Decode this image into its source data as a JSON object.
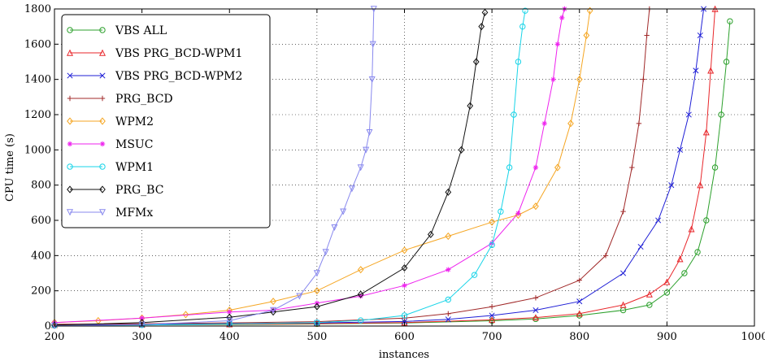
{
  "chart_data": {
    "type": "line",
    "xlabel": "instances",
    "ylabel": "CPU time (s)",
    "xlim": [
      200,
      1000
    ],
    "ylim": [
      0,
      1800
    ],
    "xticks": [
      200,
      300,
      400,
      500,
      600,
      700,
      800,
      900,
      1000
    ],
    "yticks": [
      0,
      200,
      400,
      600,
      800,
      1000,
      1200,
      1400,
      1600,
      1800
    ],
    "grid": "dotted",
    "legend_position": "top-left",
    "series": [
      {
        "name": "VBS ALL",
        "color": "#2ca02c",
        "marker": "circle",
        "x": [
          200,
          300,
          400,
          500,
          600,
          700,
          750,
          800,
          850,
          880,
          900,
          920,
          935,
          945,
          955,
          962,
          968,
          972
        ],
        "y": [
          5,
          7,
          9,
          12,
          17,
          30,
          40,
          60,
          90,
          120,
          190,
          300,
          420,
          600,
          900,
          1200,
          1500,
          1730
        ]
      },
      {
        "name": "VBS PRG_BCD-WPM1",
        "color": "#e8262a",
        "marker": "triangle-up",
        "x": [
          200,
          300,
          400,
          500,
          600,
          700,
          750,
          800,
          850,
          880,
          900,
          915,
          928,
          938,
          945,
          950,
          955
        ],
        "y": [
          6,
          8,
          10,
          14,
          20,
          35,
          48,
          70,
          120,
          180,
          250,
          380,
          550,
          800,
          1100,
          1450,
          1800
        ]
      },
      {
        "name": "VBS PRG_BCD-WPM2",
        "color": "#1f1fd6",
        "marker": "x",
        "x": [
          200,
          300,
          400,
          500,
          600,
          650,
          700,
          750,
          800,
          850,
          870,
          890,
          905,
          915,
          925,
          933,
          938,
          942
        ],
        "y": [
          8,
          10,
          14,
          18,
          26,
          38,
          60,
          90,
          140,
          300,
          450,
          600,
          800,
          1000,
          1200,
          1450,
          1650,
          1800
        ]
      },
      {
        "name": "PRG_BCD",
        "color": "#a02828",
        "marker": "plus",
        "x": [
          200,
          300,
          400,
          500,
          600,
          650,
          700,
          750,
          800,
          830,
          850,
          860,
          868,
          873,
          877,
          880
        ],
        "y": [
          10,
          13,
          18,
          25,
          45,
          70,
          110,
          160,
          260,
          400,
          650,
          900,
          1150,
          1400,
          1650,
          1800
        ]
      },
      {
        "name": "WPM2",
        "color": "#f5a623",
        "marker": "diamond",
        "x": [
          200,
          250,
          300,
          350,
          400,
          450,
          500,
          550,
          600,
          650,
          700,
          730,
          750,
          775,
          790,
          800,
          808,
          812
        ],
        "y": [
          20,
          30,
          45,
          65,
          90,
          140,
          200,
          320,
          430,
          510,
          590,
          630,
          680,
          900,
          1150,
          1400,
          1650,
          1790
        ]
      },
      {
        "name": "MSUC",
        "color": "#ee22ee",
        "marker": "star",
        "x": [
          200,
          300,
          400,
          450,
          500,
          550,
          600,
          650,
          700,
          730,
          750,
          760,
          770,
          775,
          780,
          783
        ],
        "y": [
          20,
          45,
          80,
          90,
          130,
          170,
          230,
          320,
          470,
          640,
          900,
          1150,
          1400,
          1600,
          1750,
          1800
        ]
      },
      {
        "name": "WPM1",
        "color": "#17d4e8",
        "marker": "circle",
        "x": [
          200,
          300,
          400,
          500,
          550,
          600,
          650,
          680,
          700,
          710,
          720,
          725,
          730,
          735,
          738
        ],
        "y": [
          3,
          6,
          12,
          20,
          32,
          60,
          150,
          290,
          460,
          650,
          900,
          1200,
          1500,
          1700,
          1790
        ]
      },
      {
        "name": "PRG_BC",
        "color": "#111111",
        "marker": "diamond",
        "x": [
          200,
          300,
          400,
          450,
          500,
          550,
          600,
          630,
          650,
          665,
          675,
          682,
          688,
          692
        ],
        "y": [
          5,
          20,
          50,
          80,
          110,
          180,
          330,
          520,
          760,
          1000,
          1250,
          1500,
          1700,
          1780
        ]
      },
      {
        "name": "MFMx",
        "color": "#8888ee",
        "marker": "triangle-down",
        "x": [
          200,
          300,
          400,
          450,
          480,
          500,
          510,
          520,
          530,
          540,
          550,
          556,
          560,
          563,
          564,
          565
        ],
        "y": [
          2,
          8,
          30,
          90,
          170,
          300,
          420,
          560,
          650,
          780,
          900,
          1000,
          1100,
          1400,
          1600,
          1800
        ]
      }
    ]
  }
}
